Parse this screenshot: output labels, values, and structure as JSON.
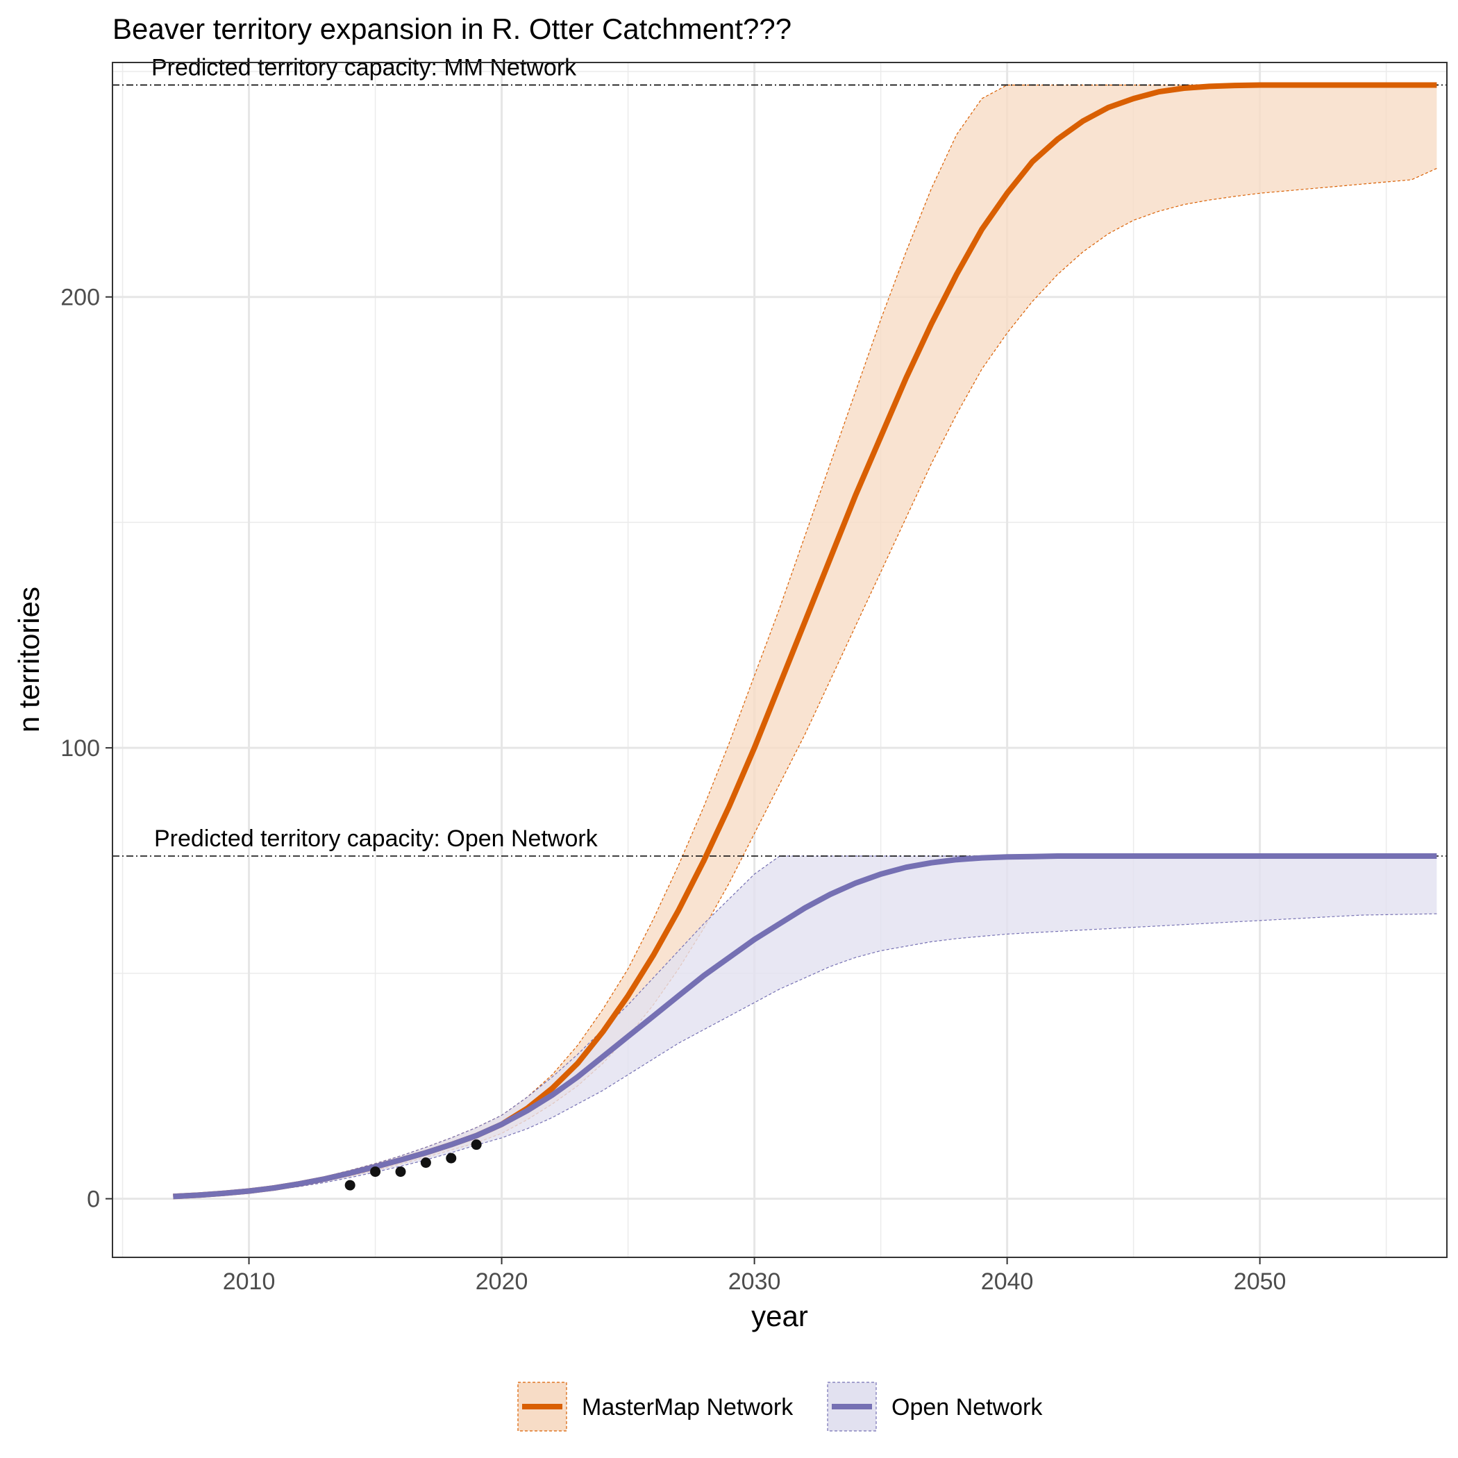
{
  "chart_data": {
    "type": "line",
    "title": "Beaver territory expansion in R. Otter Catchment???",
    "xlabel": "year",
    "ylabel": "n territories",
    "xlim": [
      2004.6,
      2057.4
    ],
    "ylim": [
      -13,
      252
    ],
    "x_ticks": [
      2010,
      2020,
      2030,
      2040,
      2050
    ],
    "x_tick_labels": [
      "2010",
      "2020",
      "2030",
      "2040",
      "2050"
    ],
    "y_ticks": [
      0,
      100,
      200
    ],
    "y_tick_labels": [
      "0",
      "100",
      "200"
    ],
    "grid": true,
    "legend_position": "bottom",
    "colors": {
      "mastermap_line": "#d95f02",
      "mastermap_band": "#f7dcc6",
      "open_line": "#7570b3",
      "open_band": "#e2e1f0",
      "points": "#111111"
    },
    "reference_lines": [
      {
        "y": 247,
        "label": "Predicted territory capacity: MM Network"
      },
      {
        "y": 76,
        "label": "Predicted territory capacity: Open Network"
      }
    ],
    "observed_points": {
      "x": [
        2014,
        2015,
        2016,
        2017,
        2018,
        2019
      ],
      "y": [
        3,
        6,
        6,
        8,
        9,
        12
      ]
    },
    "series": [
      {
        "name": "MasterMap Network",
        "x": [
          2007,
          2008,
          2009,
          2010,
          2011,
          2012,
          2013,
          2014,
          2015,
          2016,
          2017,
          2018,
          2019,
          2020,
          2021,
          2022,
          2023,
          2024,
          2025,
          2026,
          2027,
          2028,
          2029,
          2030,
          2031,
          2032,
          2033,
          2034,
          2035,
          2036,
          2037,
          2038,
          2039,
          2040,
          2041,
          2042,
          2043,
          2044,
          2045,
          2046,
          2047,
          2048,
          2049,
          2050,
          2051,
          2052,
          2053,
          2054,
          2055,
          2056,
          2057
        ],
        "values": [
          0.5,
          0.8,
          1.2,
          1.7,
          2.4,
          3.3,
          4.4,
          5.7,
          7.1,
          8.6,
          10.2,
          12.0,
          14.0,
          16.5,
          20.0,
          24.5,
          30.0,
          37.0,
          45.0,
          54.0,
          64.0,
          75.0,
          87.0,
          100.0,
          114.0,
          128.0,
          142.0,
          156.0,
          169.0,
          182.0,
          194.0,
          205.0,
          215.0,
          223.0,
          230.0,
          235.0,
          239.0,
          242.0,
          244.0,
          245.5,
          246.3,
          246.7,
          246.9,
          247.0,
          247.0,
          247.0,
          247.0,
          247.0,
          247.0,
          247.0,
          247.0
        ],
        "lower": [
          0.5,
          0.8,
          1.1,
          1.5,
          2.1,
          2.9,
          3.9,
          5.0,
          6.3,
          7.7,
          9.2,
          10.8,
          12.4,
          14.5,
          17.5,
          21.0,
          25.0,
          30.0,
          36.0,
          43.0,
          51.0,
          60.0,
          70.0,
          81.0,
          92.0,
          103.0,
          115.0,
          127.0,
          139.0,
          151.0,
          163.0,
          174.0,
          184.0,
          192.0,
          199.0,
          205.0,
          210.0,
          214.0,
          217.0,
          219.0,
          220.5,
          221.5,
          222.3,
          223.0,
          223.5,
          224.0,
          224.5,
          225.0,
          225.5,
          226.0,
          228.5
        ],
        "upper": [
          0.6,
          0.9,
          1.3,
          1.9,
          2.7,
          3.7,
          4.9,
          6.3,
          7.8,
          9.5,
          11.4,
          13.5,
          15.8,
          18.5,
          22.5,
          27.5,
          34.0,
          42.0,
          51.0,
          62.0,
          74.0,
          87.0,
          101.0,
          116.0,
          131.0,
          147.0,
          163.0,
          179.0,
          195.0,
          210.0,
          224.0,
          236.0,
          244.0,
          247.0,
          247.0,
          247.0,
          247.0,
          247.0,
          247.0,
          247.0,
          247.0,
          247.0,
          247.0,
          247.0,
          247.0,
          247.0,
          247.0,
          247.0,
          247.0,
          247.0,
          247.0
        ]
      },
      {
        "name": "Open Network",
        "x": [
          2007,
          2008,
          2009,
          2010,
          2011,
          2012,
          2013,
          2014,
          2015,
          2016,
          2017,
          2018,
          2019,
          2020,
          2021,
          2022,
          2023,
          2024,
          2025,
          2026,
          2027,
          2028,
          2029,
          2030,
          2031,
          2032,
          2033,
          2034,
          2035,
          2036,
          2037,
          2038,
          2039,
          2040,
          2041,
          2042,
          2043,
          2044,
          2045,
          2046,
          2047,
          2048,
          2049,
          2050,
          2051,
          2052,
          2053,
          2054,
          2055,
          2056,
          2057
        ],
        "values": [
          0.5,
          0.8,
          1.2,
          1.7,
          2.4,
          3.3,
          4.4,
          5.7,
          7.1,
          8.6,
          10.2,
          12.0,
          14.0,
          16.5,
          19.5,
          23.0,
          27.0,
          31.5,
          36.0,
          40.5,
          45.0,
          49.5,
          53.5,
          57.5,
          61.0,
          64.5,
          67.5,
          70.0,
          72.0,
          73.5,
          74.5,
          75.2,
          75.6,
          75.8,
          75.9,
          76.0,
          76.0,
          76.0,
          76.0,
          76.0,
          76.0,
          76.0,
          76.0,
          76.0,
          76.0,
          76.0,
          76.0,
          76.0,
          76.0,
          76.0,
          76.0
        ],
        "lower": [
          0.4,
          0.7,
          1.0,
          1.4,
          2.0,
          2.7,
          3.6,
          4.7,
          5.9,
          7.2,
          8.6,
          10.2,
          11.9,
          13.5,
          15.5,
          18.0,
          21.0,
          24.0,
          27.5,
          31.0,
          34.5,
          37.5,
          40.5,
          43.5,
          46.5,
          49.0,
          51.5,
          53.5,
          55.0,
          56.0,
          57.0,
          57.7,
          58.2,
          58.7,
          59.0,
          59.3,
          59.6,
          59.9,
          60.2,
          60.5,
          60.8,
          61.1,
          61.4,
          61.7,
          62.0,
          62.3,
          62.6,
          62.9,
          63.0,
          63.1,
          63.2
        ],
        "upper": [
          0.6,
          0.9,
          1.3,
          1.9,
          2.7,
          3.7,
          4.9,
          6.3,
          7.8,
          9.5,
          11.4,
          13.5,
          15.8,
          18.5,
          22.5,
          27.0,
          32.0,
          37.5,
          43.0,
          49.0,
          55.0,
          61.0,
          66.5,
          72.0,
          76.0,
          76.0,
          76.0,
          76.0,
          76.0,
          76.0,
          76.0,
          76.0,
          76.0,
          76.0,
          76.0,
          76.0,
          76.0,
          76.0,
          76.0,
          76.0,
          76.0,
          76.0,
          76.0,
          76.0,
          76.0,
          76.0,
          76.0,
          76.0,
          76.0,
          76.0,
          76.0
        ]
      }
    ]
  }
}
